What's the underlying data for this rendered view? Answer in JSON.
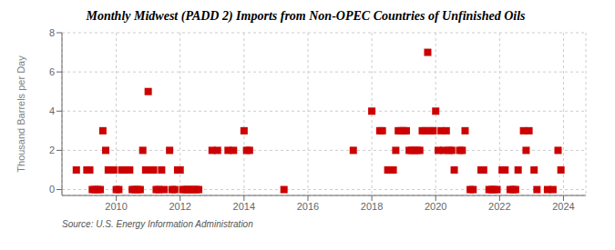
{
  "chart_data": {
    "type": "scatter",
    "title": "Monthly Midwest (PADD 2) Imports from Non-OPEC Countries of Unfinished Oils",
    "y_label": "Thousand Barrels per Day",
    "annotations": [
      "Source: U.S. Energy Information Administration"
    ],
    "color": "#cc0000",
    "marker": "square",
    "grid": true,
    "xlim": [
      2008.3,
      2024.7
    ],
    "xticks": [
      2010,
      2012,
      2014,
      2016,
      2018,
      2020,
      2022,
      2024
    ],
    "ylim": [
      -0.3,
      8
    ],
    "yticks": [
      0,
      2,
      4,
      6,
      8
    ],
    "x": [
      2008.75,
      2009.08,
      2009.17,
      2009.25,
      2009.33,
      2009.42,
      2009.5,
      2009.58,
      2009.67,
      2009.75,
      2009.83,
      2009.92,
      2010.0,
      2010.08,
      2010.17,
      2010.25,
      2010.33,
      2010.42,
      2010.5,
      2010.58,
      2010.67,
      2010.75,
      2010.83,
      2010.92,
      2011.0,
      2011.08,
      2011.17,
      2011.25,
      2011.33,
      2011.42,
      2011.5,
      2011.67,
      2011.75,
      2011.83,
      2011.92,
      2012.0,
      2012.08,
      2012.17,
      2012.25,
      2012.33,
      2012.42,
      2012.5,
      2012.58,
      2013.0,
      2013.17,
      2013.5,
      2013.67,
      2014.0,
      2014.08,
      2014.17,
      2015.25,
      2017.42,
      2018.0,
      2018.25,
      2018.33,
      2018.5,
      2018.58,
      2018.67,
      2018.75,
      2018.83,
      2018.92,
      2019.0,
      2019.08,
      2019.17,
      2019.25,
      2019.33,
      2019.42,
      2019.5,
      2019.58,
      2019.67,
      2019.75,
      2019.83,
      2019.92,
      2020.0,
      2020.08,
      2020.17,
      2020.25,
      2020.33,
      2020.42,
      2020.5,
      2020.58,
      2020.75,
      2020.83,
      2020.92,
      2021.08,
      2021.17,
      2021.42,
      2021.5,
      2021.67,
      2021.75,
      2021.83,
      2021.92,
      2022.08,
      2022.17,
      2022.33,
      2022.42,
      2022.5,
      2022.58,
      2022.75,
      2022.83,
      2022.92,
      2023.08,
      2023.17,
      2023.5,
      2023.67,
      2023.83,
      2023.92
    ],
    "values": [
      1,
      1,
      1,
      0,
      0,
      0,
      0,
      3,
      2,
      1,
      1,
      1,
      0,
      0,
      1,
      1,
      1,
      1,
      0,
      0,
      0,
      0,
      2,
      1,
      5,
      1,
      1,
      0,
      0,
      1,
      0,
      2,
      0,
      0,
      1,
      1,
      0,
      0,
      0,
      0,
      0,
      0,
      0,
      2,
      2,
      2,
      2,
      3,
      2,
      2,
      0,
      2,
      4,
      3,
      3,
      1,
      1,
      1,
      2,
      3,
      3,
      3,
      3,
      2,
      2,
      2,
      2,
      2,
      3,
      3,
      7,
      3,
      3,
      4,
      2,
      3,
      2,
      3,
      2,
      2,
      1,
      2,
      2,
      3,
      0,
      0,
      1,
      1,
      0,
      0,
      0,
      0,
      1,
      1,
      0,
      0,
      0,
      1,
      3,
      2,
      3,
      1,
      0,
      0,
      0,
      2,
      1
    ]
  }
}
